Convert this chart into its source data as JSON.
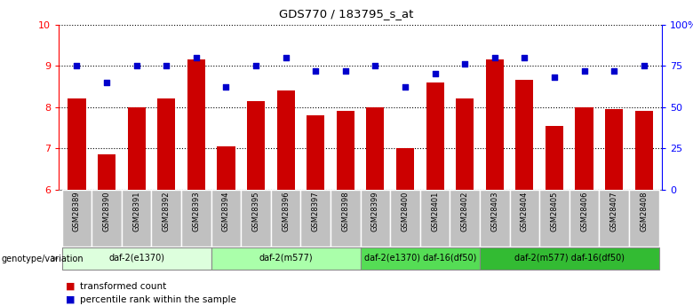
{
  "title": "GDS770 / 183795_s_at",
  "samples": [
    "GSM28389",
    "GSM28390",
    "GSM28391",
    "GSM28392",
    "GSM28393",
    "GSM28394",
    "GSM28395",
    "GSM28396",
    "GSM28397",
    "GSM28398",
    "GSM28399",
    "GSM28400",
    "GSM28401",
    "GSM28402",
    "GSM28403",
    "GSM28404",
    "GSM28405",
    "GSM28406",
    "GSM28407",
    "GSM28408"
  ],
  "bar_values": [
    8.2,
    6.85,
    8.0,
    8.2,
    9.15,
    7.05,
    8.15,
    8.4,
    7.8,
    7.9,
    8.0,
    7.0,
    8.6,
    8.2,
    9.15,
    8.65,
    7.55,
    8.0,
    7.95,
    7.9
  ],
  "dot_values": [
    75,
    65,
    75,
    75,
    80,
    62,
    75,
    80,
    72,
    72,
    75,
    62,
    70,
    76,
    80,
    80,
    68,
    72,
    72,
    75
  ],
  "ylim_left": [
    6,
    10
  ],
  "ylim_right": [
    0,
    100
  ],
  "yticks_left": [
    6,
    7,
    8,
    9,
    10
  ],
  "yticks_right": [
    0,
    25,
    50,
    75,
    100
  ],
  "yticklabels_right": [
    "0",
    "25",
    "50",
    "75",
    "100%"
  ],
  "bar_color": "#cc0000",
  "dot_color": "#0000cc",
  "groups": [
    {
      "label": "daf-2(e1370)",
      "start": 0,
      "end": 5,
      "color": "#ddffdd"
    },
    {
      "label": "daf-2(m577)",
      "start": 5,
      "end": 10,
      "color": "#aaffaa"
    },
    {
      "label": "daf-2(e1370) daf-16(df50)",
      "start": 10,
      "end": 14,
      "color": "#55dd55"
    },
    {
      "label": "daf-2(m577) daf-16(df50)",
      "start": 14,
      "end": 20,
      "color": "#33bb33"
    }
  ],
  "genotype_label": "genotype/variation",
  "legend_bar_label": "transformed count",
  "legend_dot_label": "percentile rank within the sample",
  "xticklabel_bg": "#c0c0c0",
  "group_border_color": "#888888"
}
